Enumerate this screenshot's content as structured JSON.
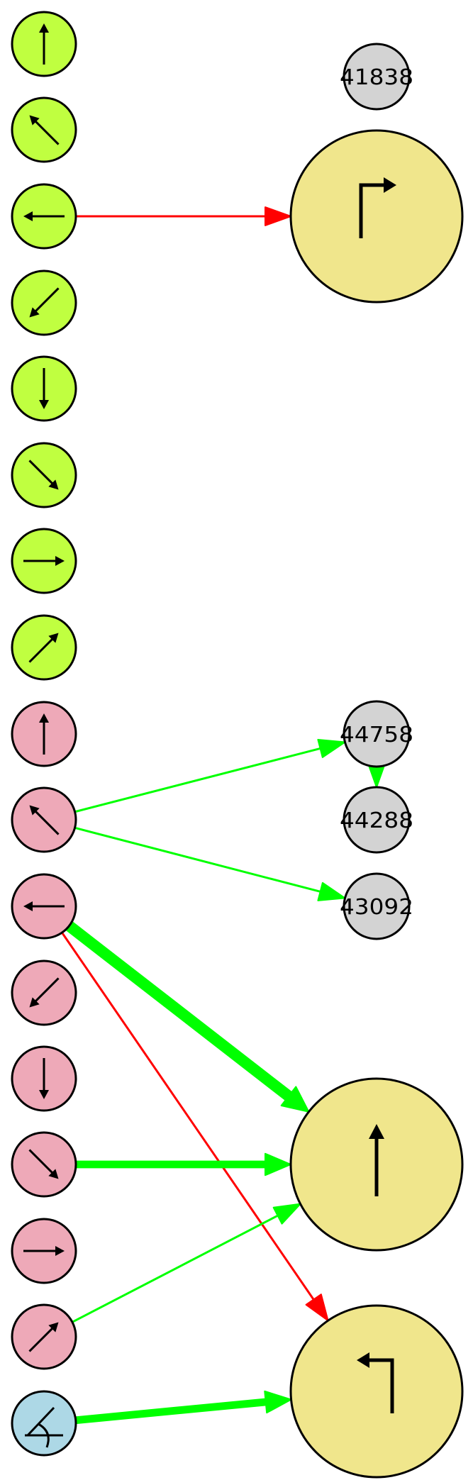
{
  "colors": {
    "lime": "#c0ff40",
    "pink": "#eea9b8",
    "blue": "#add8e6",
    "yellow": "#f0e68c",
    "gray": "#d3d3d3",
    "edge_green": "#00ff00",
    "edge_red": "#ff0000"
  },
  "nodes": [
    {
      "key": "lime-n",
      "name": "lime-north-arrow-node",
      "fill": "lime",
      "icon": "arrow-north-icon"
    },
    {
      "key": "lime-nw",
      "name": "lime-northwest-arrow-node",
      "fill": "lime",
      "icon": "arrow-northwest-icon"
    },
    {
      "key": "lime-w",
      "name": "lime-west-arrow-node",
      "fill": "lime",
      "icon": "arrow-west-icon"
    },
    {
      "key": "lime-sw",
      "name": "lime-southwest-arrow-node",
      "fill": "lime",
      "icon": "arrow-southwest-icon"
    },
    {
      "key": "lime-s",
      "name": "lime-south-arrow-node",
      "fill": "lime",
      "icon": "arrow-south-icon"
    },
    {
      "key": "lime-se",
      "name": "lime-southeast-arrow-node",
      "fill": "lime",
      "icon": "arrow-southeast-icon"
    },
    {
      "key": "lime-e",
      "name": "lime-east-arrow-node",
      "fill": "lime",
      "icon": "arrow-east-icon"
    },
    {
      "key": "lime-ne",
      "name": "lime-northeast-arrow-node",
      "fill": "lime",
      "icon": "arrow-northeast-icon"
    },
    {
      "key": "pink-n",
      "name": "pink-north-arrow-node",
      "fill": "pink",
      "icon": "arrow-north-icon"
    },
    {
      "key": "pink-nw",
      "name": "pink-northwest-arrow-node",
      "fill": "pink",
      "icon": "arrow-northwest-icon"
    },
    {
      "key": "pink-w",
      "name": "pink-west-arrow-node",
      "fill": "pink",
      "icon": "arrow-west-icon"
    },
    {
      "key": "pink-sw",
      "name": "pink-southwest-arrow-node",
      "fill": "pink",
      "icon": "arrow-southwest-icon"
    },
    {
      "key": "pink-s",
      "name": "pink-south-arrow-node",
      "fill": "pink",
      "icon": "arrow-south-icon"
    },
    {
      "key": "pink-se",
      "name": "pink-southeast-arrow-node",
      "fill": "pink",
      "icon": "arrow-southeast-icon"
    },
    {
      "key": "pink-e",
      "name": "pink-east-arrow-node",
      "fill": "pink",
      "icon": "arrow-east-icon"
    },
    {
      "key": "pink-ne",
      "name": "pink-northeast-arrow-node",
      "fill": "pink",
      "icon": "arrow-northeast-icon"
    },
    {
      "key": "blue-angle",
      "name": "blue-angle-node",
      "fill": "blue",
      "icon": "angle-icon"
    },
    {
      "key": "g41838",
      "name": "id-node-41838",
      "fill": "gray",
      "label": "41838"
    },
    {
      "key": "g44758",
      "name": "id-node-44758",
      "fill": "gray",
      "label": "44758"
    },
    {
      "key": "g44288",
      "name": "id-node-44288",
      "fill": "gray",
      "label": "44288"
    },
    {
      "key": "g43092",
      "name": "id-node-43092",
      "fill": "gray",
      "label": "43092"
    },
    {
      "key": "y-right-turn",
      "name": "turn-right-node",
      "fill": "yellow",
      "icon": "turn-right-icon"
    },
    {
      "key": "y-straight",
      "name": "go-straight-node",
      "fill": "yellow",
      "icon": "straight-arrow-icon"
    },
    {
      "key": "y-left-turn",
      "name": "turn-left-node",
      "fill": "yellow",
      "icon": "turn-left-icon"
    }
  ],
  "edges": [
    {
      "from": "lime-w",
      "to": "y-right-turn",
      "color": "edge_red",
      "weight": 1
    },
    {
      "from": "pink-nw",
      "to": "g44758",
      "color": "edge_green",
      "weight": 1
    },
    {
      "from": "pink-nw",
      "to": "g43092",
      "color": "edge_green",
      "weight": 1
    },
    {
      "from": "g44758",
      "to": "g44288",
      "color": "edge_green",
      "weight": 1
    },
    {
      "from": "pink-w",
      "to": "y-straight",
      "color": "edge_green",
      "weight": 6
    },
    {
      "from": "pink-w",
      "to": "y-left-turn",
      "color": "edge_red",
      "weight": 1
    },
    {
      "from": "pink-se",
      "to": "y-straight",
      "color": "edge_green",
      "weight": 4
    },
    {
      "from": "pink-ne",
      "to": "y-straight",
      "color": "edge_green",
      "weight": 1
    },
    {
      "from": "blue-angle",
      "to": "y-left-turn",
      "color": "edge_green",
      "weight": 4
    }
  ]
}
